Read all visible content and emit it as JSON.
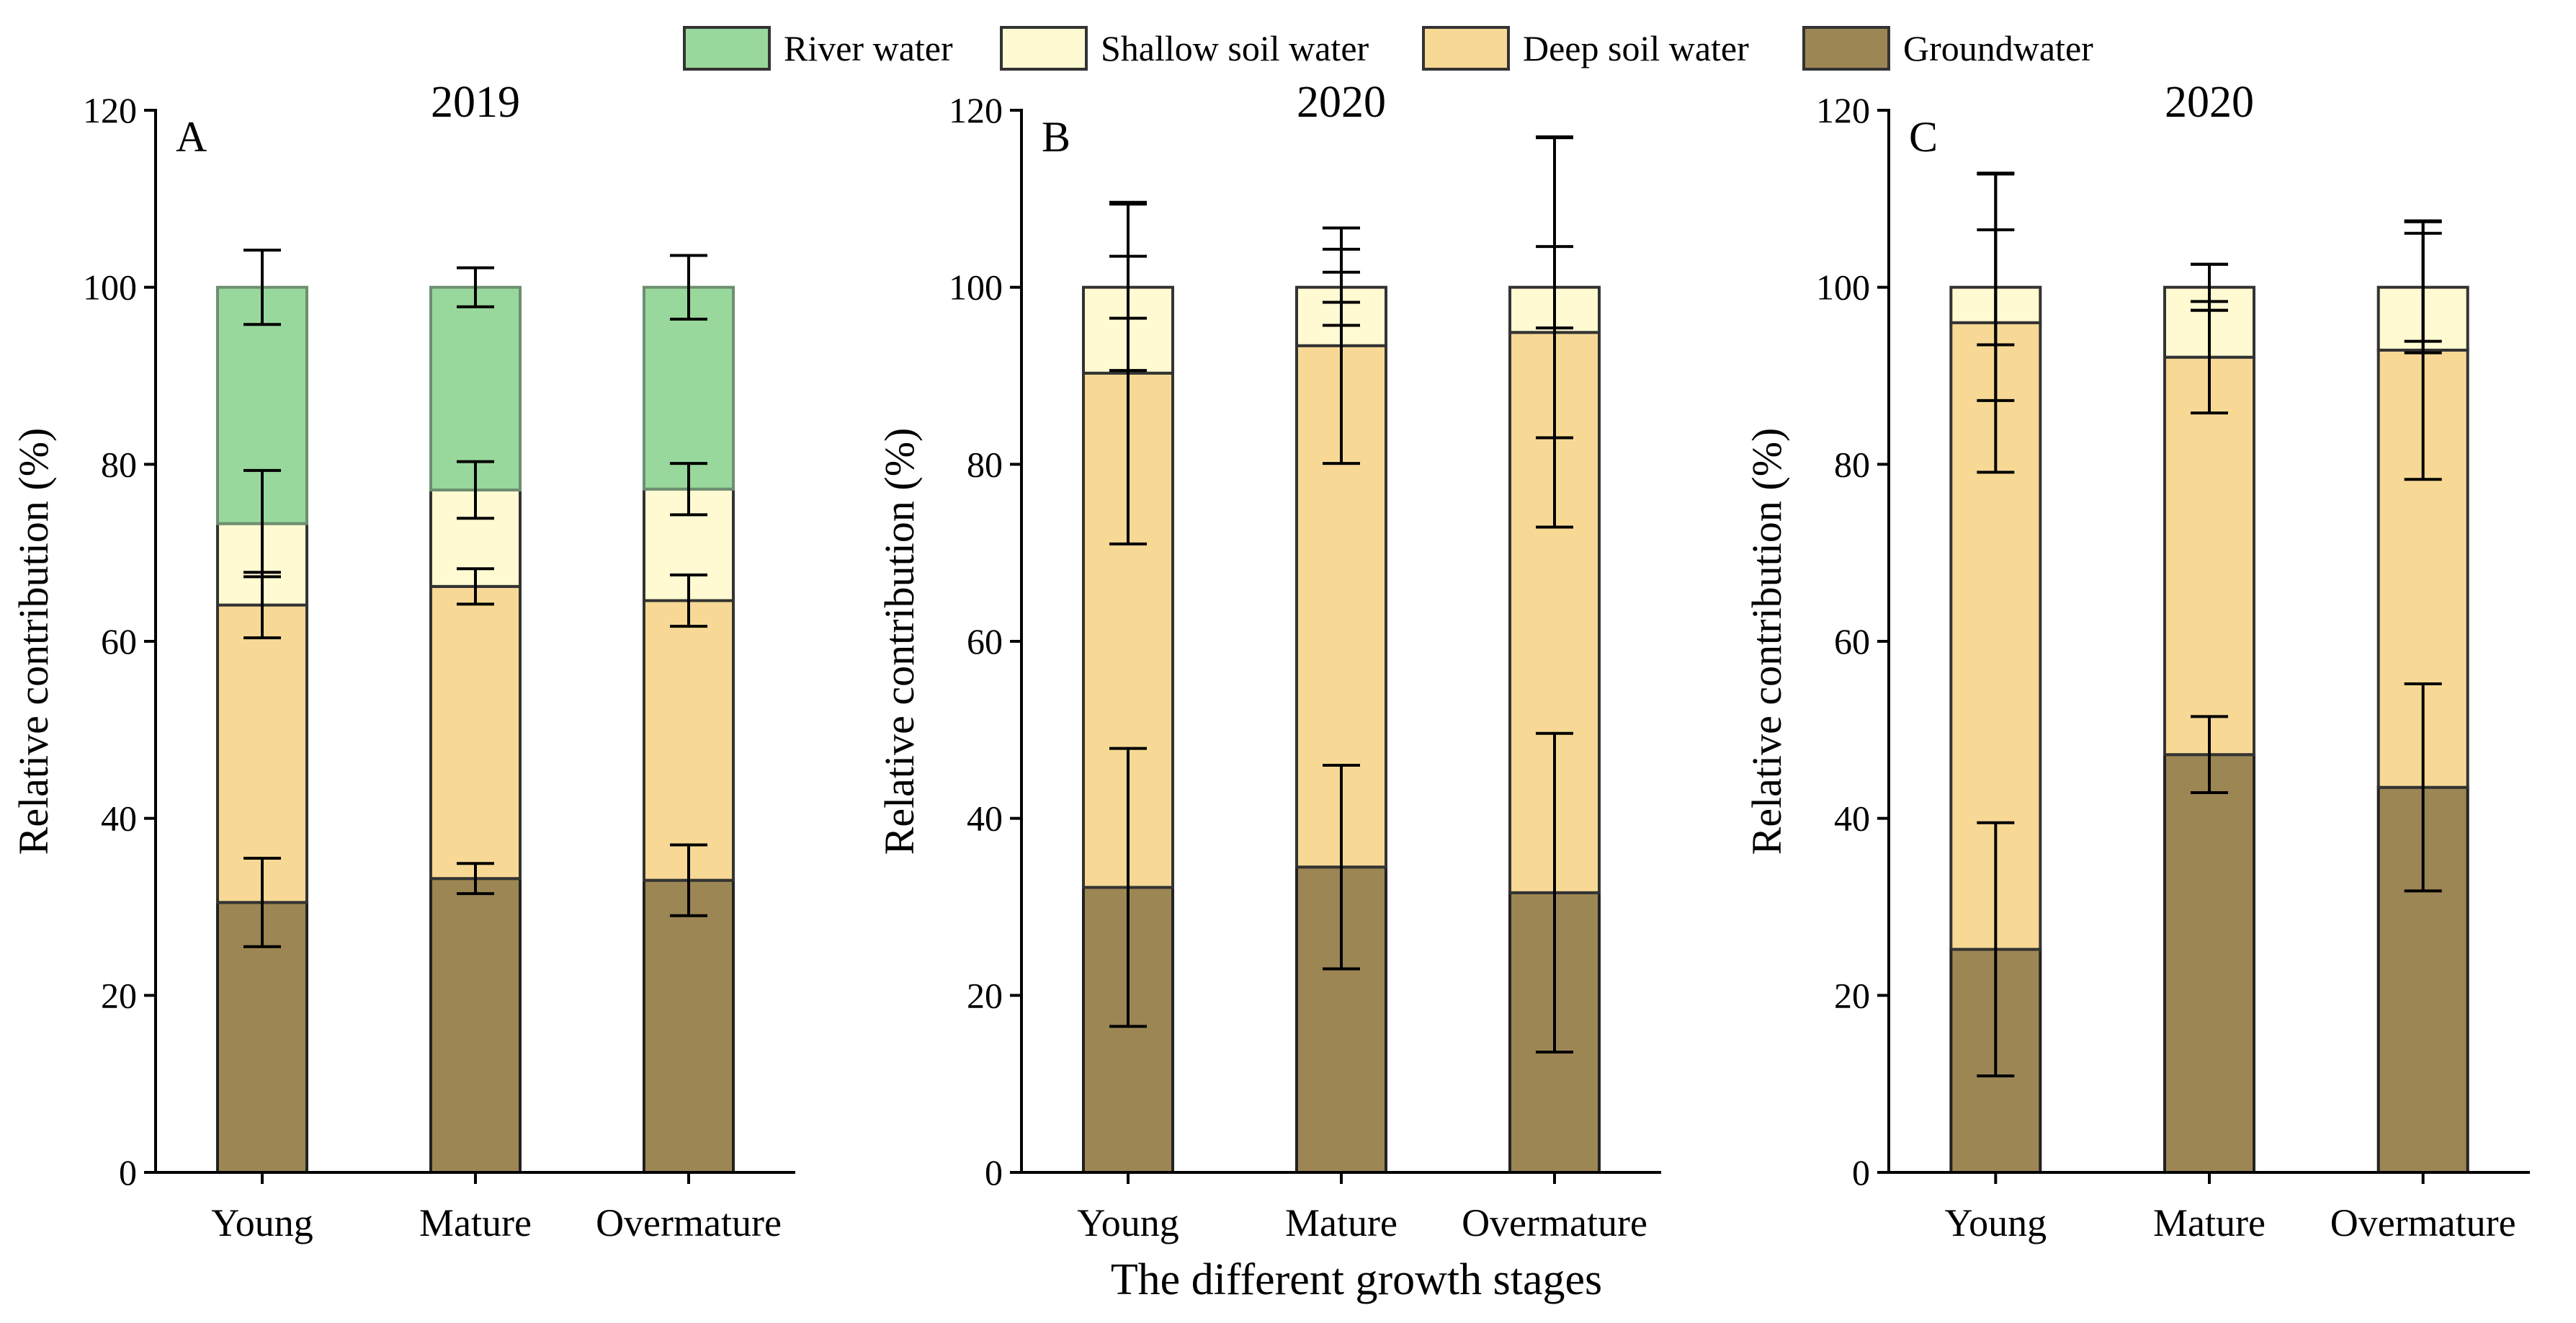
{
  "legend": [
    {
      "key": "river",
      "label": "River water",
      "color": "#99d89c"
    },
    {
      "key": "shallow",
      "label": "Shallow soil water",
      "color": "#fffad2"
    },
    {
      "key": "deep",
      "label": "Deep soil water",
      "color": "#f7d995"
    },
    {
      "key": "ground",
      "label": "Groundwater",
      "color": "#9c8654"
    }
  ],
  "xlabel": "The different growth stages",
  "chart_data": [
    {
      "type": "bar",
      "stacked": true,
      "letter": "A",
      "title": "2019",
      "ylabel": "Relative contribution (%)",
      "ylim": [
        0,
        120
      ],
      "yticks": [
        "0",
        "20",
        "40",
        "60",
        "80",
        "100",
        "120"
      ],
      "categories": [
        "Young",
        "Mature",
        "Overmature"
      ],
      "series": [
        {
          "key": "ground",
          "name": "Groundwater",
          "values": [
            30.5,
            33.2,
            33.0
          ],
          "errors": [
            5.0,
            1.7,
            4.0
          ]
        },
        {
          "key": "deep",
          "name": "Deep soil water",
          "values": [
            33.6,
            33.0,
            31.6
          ],
          "errors": [
            3.7,
            2.0,
            2.9
          ]
        },
        {
          "key": "shallow",
          "name": "Shallow soil water",
          "values": [
            9.2,
            10.9,
            12.6
          ],
          "errors": [
            6.0,
            3.2,
            2.9
          ]
        },
        {
          "key": "river",
          "name": "River water",
          "values": [
            26.7,
            22.9,
            22.8
          ],
          "errors": [
            4.2,
            2.2,
            3.6
          ]
        }
      ]
    },
    {
      "type": "bar",
      "stacked": true,
      "letter": "B",
      "title": "2020",
      "ylabel": "Relative contribution (%)",
      "ylim": [
        0,
        120
      ],
      "yticks": [
        "0",
        "20",
        "40",
        "60",
        "80",
        "100",
        "120"
      ],
      "categories": [
        "Young",
        "Mature",
        "Overmature"
      ],
      "series": [
        {
          "key": "ground",
          "name": "Groundwater",
          "values": [
            32.2,
            34.5,
            31.6
          ],
          "errors": [
            15.7,
            11.5,
            18.0
          ]
        },
        {
          "key": "deep",
          "name": "Deep soil water",
          "values": [
            58.1,
            58.9,
            63.3
          ],
          "errors": [
            19.3,
            13.3,
            22.0
          ]
        },
        {
          "key": "shallow",
          "name": "Shallow soil water",
          "values": [
            9.7,
            6.6,
            5.1
          ],
          "errors": [
            9.4,
            4.3,
            4.6
          ]
        }
      ],
      "extra_errors": [
        {
          "category": 0,
          "center": 100,
          "error": 3.5
        },
        {
          "category": 1,
          "center": 100,
          "error": 1.7
        },
        {
          "category": 2,
          "center": 100,
          "error": 17.0
        }
      ]
    },
    {
      "type": "bar",
      "stacked": true,
      "letter": "C",
      "title": "2020",
      "ylabel": "Relative contribution (%)",
      "ylim": [
        0,
        120
      ],
      "yticks": [
        "0",
        "20",
        "40",
        "60",
        "80",
        "100",
        "120"
      ],
      "categories": [
        "Young",
        "Mature",
        "Overmature"
      ],
      "series": [
        {
          "key": "ground",
          "name": "Groundwater",
          "values": [
            25.2,
            47.2,
            43.5
          ],
          "errors": [
            14.3,
            4.3,
            11.7
          ]
        },
        {
          "key": "deep",
          "name": "Deep soil water",
          "values": [
            70.8,
            44.9,
            49.4
          ],
          "errors": [
            16.9,
            6.3,
            14.6
          ]
        },
        {
          "key": "shallow",
          "name": "Shallow soil water",
          "values": [
            4.0,
            7.9,
            7.1
          ],
          "errors": [
            6.5,
            2.6,
            6.1
          ]
        }
      ],
      "extra_errors": [
        {
          "category": 0,
          "center": 100,
          "error": 12.8
        },
        {
          "category": 1,
          "center": 100,
          "error": 2.6
        },
        {
          "category": 2,
          "center": 100,
          "error": 7.4
        }
      ]
    }
  ]
}
